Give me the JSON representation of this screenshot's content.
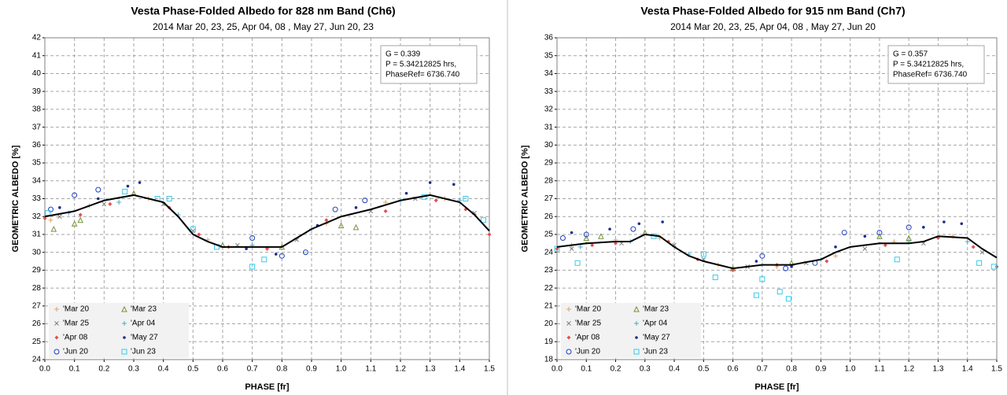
{
  "chart_data": [
    {
      "type": "scatter",
      "title": "Vesta Phase-Folded Albedo for 828 nm Band (Ch6)",
      "subtitle": "2014  Mar 20,  23, 25, Apr 04,  08 , May 27, Jun 20,  23",
      "x_label": "PHASE [fr]",
      "y_label": "GEOMETRIC ALBEDO [%]",
      "annotation": [
        "G = 0.339",
        "P = 5.34212825 hrs,",
        "PhaseRef= 6736.740"
      ],
      "xlim": [
        0,
        1.5
      ],
      "ylim": [
        24,
        42
      ],
      "xticks": [
        {
          "value": 0,
          "label": "0.0"
        },
        0.1,
        0.2,
        0.3,
        0.4,
        0.5,
        0.6,
        0.7,
        0.8,
        0.9,
        {
          "value": 1,
          "label": "1.0"
        },
        1.1,
        1.2,
        1.3,
        1.4,
        1.5
      ],
      "yticks": [
        24,
        25,
        26,
        27,
        28,
        29,
        30,
        31,
        32,
        33,
        34,
        35,
        36,
        37,
        38,
        39,
        40,
        41,
        42
      ],
      "grid": true,
      "legend": "lower left",
      "series": [
        {
          "name": "'Mar 20",
          "color": "#d9a66c",
          "marker": "plus",
          "x": [
            0.02,
            0.15,
            0.35,
            0.55,
            0.75,
            0.95,
            1.15,
            1.35
          ],
          "values": [
            31.8,
            32.6,
            33.0,
            30.7,
            30.2,
            31.6,
            32.8,
            33.0
          ]
        },
        {
          "name": "'Mar 23",
          "color": "#77933c",
          "marker": "triangle",
          "x": [
            0.03,
            0.1,
            0.12,
            0.3,
            0.6,
            0.8,
            1.0,
            1.05
          ],
          "values": [
            31.3,
            31.6,
            31.8,
            33.3,
            30.4,
            30.3,
            31.5,
            31.4
          ]
        },
        {
          "name": "'Mar 25",
          "color": "#7f7f7f",
          "marker": "cross",
          "x": [
            0.05,
            0.2,
            0.4,
            0.5,
            0.65,
            0.85,
            1.1,
            1.25,
            1.45
          ],
          "values": [
            32.0,
            32.7,
            32.7,
            31.2,
            30.4,
            30.7,
            32.3,
            33.0,
            32.2
          ]
        },
        {
          "name": "'Apr 04",
          "color": "#4bacc6",
          "marker": "plus",
          "x": [
            0.08,
            0.25,
            0.45,
            0.7,
            0.9,
            1.2,
            1.4
          ],
          "values": [
            32.2,
            32.8,
            32.1,
            30.4,
            31.3,
            32.9,
            32.9
          ]
        },
        {
          "name": "'Apr 08",
          "color": "#e05050",
          "marker": "diamond",
          "x": [
            0.0,
            0.12,
            0.22,
            0.42,
            0.52,
            0.62,
            0.75,
            0.95,
            1.15,
            1.32,
            1.42,
            1.5
          ],
          "values": [
            31.9,
            32.1,
            32.7,
            32.5,
            31.0,
            30.3,
            30.2,
            31.8,
            32.3,
            32.9,
            32.4,
            31.0
          ]
        },
        {
          "name": "'May 27",
          "color": "#1f2d8f",
          "marker": "dot",
          "x": [
            0.05,
            0.18,
            0.28,
            0.32,
            0.68,
            0.78,
            0.92,
            1.05,
            1.22,
            1.3,
            1.38
          ],
          "values": [
            32.5,
            33.0,
            33.7,
            33.9,
            30.2,
            29.9,
            31.5,
            32.5,
            33.3,
            33.9,
            33.8
          ]
        },
        {
          "name": "'Jun 20",
          "color": "#2040c0",
          "marker": "circle",
          "x": [
            0.02,
            0.1,
            0.18,
            0.7,
            0.8,
            0.88,
            0.98,
            1.08
          ],
          "values": [
            32.4,
            33.2,
            33.5,
            30.8,
            29.8,
            30.0,
            32.4,
            32.9
          ]
        },
        {
          "name": "'Jun 23",
          "color": "#33ccee",
          "marker": "square",
          "x": [
            0.01,
            0.27,
            0.38,
            0.42,
            0.5,
            0.58,
            0.7,
            0.74,
            1.28,
            1.42,
            1.48
          ],
          "values": [
            32.2,
            33.4,
            33.0,
            33.0,
            31.3,
            30.3,
            29.2,
            29.6,
            33.1,
            33.0,
            31.8
          ]
        }
      ],
      "fit": {
        "color": "#000000",
        "x": [
          0,
          0.1,
          0.2,
          0.3,
          0.4,
          0.45,
          0.5,
          0.55,
          0.6,
          0.7,
          0.8,
          0.85,
          0.9,
          1.0,
          1.1,
          1.2,
          1.3,
          1.4,
          1.45,
          1.5
        ],
        "values": [
          32.0,
          32.3,
          32.9,
          33.2,
          32.8,
          32.0,
          31.0,
          30.6,
          30.3,
          30.3,
          30.3,
          30.8,
          31.3,
          32.0,
          32.4,
          32.9,
          33.2,
          32.8,
          32.1,
          31.2
        ]
      }
    },
    {
      "type": "scatter",
      "title": "Vesta Phase-Folded Albedo for 915 nm Band (Ch7)",
      "subtitle": "2014  Mar 20,  23, 25, Apr 04,  08 , May 27, Jun 20",
      "x_label": "PHASE [fr]",
      "y_label": "GEOMETRIC ALBEDO [%]",
      "annotation": [
        "G = 0.357",
        "P = 5.34212825 hrs,",
        "PhaseRef= 6736.740"
      ],
      "xlim": [
        0,
        1.5
      ],
      "ylim": [
        18,
        36
      ],
      "xticks": [
        {
          "value": 0,
          "label": "0.0"
        },
        0.1,
        0.2,
        0.3,
        0.4,
        0.5,
        0.6,
        0.7,
        0.8,
        0.9,
        {
          "value": 1,
          "label": "1.0"
        },
        1.1,
        1.2,
        1.3,
        1.4,
        1.5
      ],
      "yticks": [
        18,
        19,
        20,
        21,
        22,
        23,
        24,
        25,
        26,
        27,
        28,
        29,
        30,
        31,
        32,
        33,
        34,
        35,
        36
      ],
      "grid": true,
      "legend": "lower left",
      "series": [
        {
          "name": "'Mar 20",
          "color": "#d9a66c",
          "marker": "plus",
          "x": [
            0.05,
            0.2,
            0.35,
            0.55,
            0.75,
            0.95,
            1.15,
            1.35
          ],
          "values": [
            24.4,
            24.7,
            24.8,
            23.3,
            23.2,
            23.8,
            24.6,
            24.9
          ]
        },
        {
          "name": "'Mar 23",
          "color": "#77933c",
          "marker": "triangle",
          "x": [
            0.1,
            0.15,
            0.3,
            0.6,
            0.8,
            1.1,
            1.2
          ],
          "values": [
            24.8,
            24.9,
            25.1,
            23.1,
            23.4,
            24.9,
            24.8
          ]
        },
        {
          "name": "'Mar 25",
          "color": "#7f7f7f",
          "marker": "cross",
          "x": [
            0.05,
            0.22,
            0.4,
            0.5,
            0.65,
            0.85,
            1.05,
            1.25,
            1.45
          ],
          "values": [
            24.2,
            24.5,
            24.4,
            23.6,
            23.2,
            23.4,
            24.2,
            24.5,
            24.0
          ]
        },
        {
          "name": "'Apr 04",
          "color": "#4bacc6",
          "marker": "plus",
          "x": [
            0.08,
            0.25,
            0.45,
            0.7,
            0.9,
            1.2,
            1.4
          ],
          "values": [
            24.3,
            24.6,
            23.9,
            23.3,
            23.6,
            24.6,
            24.6
          ]
        },
        {
          "name": "'Apr 08",
          "color": "#e05050",
          "marker": "diamond",
          "x": [
            0.0,
            0.12,
            0.2,
            0.38,
            0.48,
            0.6,
            0.75,
            0.92,
            1.12,
            1.3,
            1.42,
            1.5
          ],
          "values": [
            24.2,
            24.4,
            24.5,
            24.6,
            23.6,
            23.0,
            23.3,
            23.5,
            24.4,
            24.8,
            24.3,
            23.2
          ]
        },
        {
          "name": "'May 27",
          "color": "#1f2d8f",
          "marker": "dot",
          "x": [
            0.05,
            0.18,
            0.28,
            0.36,
            0.68,
            0.8,
            0.95,
            1.05,
            1.25,
            1.32,
            1.38
          ],
          "values": [
            25.1,
            25.3,
            25.6,
            25.7,
            23.5,
            23.2,
            24.3,
            24.9,
            25.4,
            25.7,
            25.6
          ]
        },
        {
          "name": "'Jun 20",
          "color": "#2040c0",
          "marker": "circle",
          "x": [
            0.02,
            0.1,
            0.26,
            0.7,
            0.78,
            0.88,
            0.98,
            1.1,
            1.2
          ],
          "values": [
            24.8,
            25.0,
            25.3,
            23.8,
            23.1,
            23.4,
            25.1,
            25.1,
            25.4
          ]
        },
        {
          "name": "'Jun 23",
          "color": "#33ccee",
          "marker": "square",
          "x": [
            0.0,
            0.07,
            0.33,
            0.5,
            0.54,
            0.68,
            0.7,
            0.76,
            0.79,
            1.16,
            1.44,
            1.49
          ],
          "values": [
            24.2,
            23.4,
            24.9,
            23.9,
            22.6,
            21.6,
            22.5,
            21.8,
            21.4,
            23.6,
            23.4,
            23.2
          ]
        }
      ],
      "fit": {
        "color": "#000000",
        "x": [
          0,
          0.1,
          0.2,
          0.25,
          0.3,
          0.35,
          0.4,
          0.45,
          0.5,
          0.6,
          0.7,
          0.8,
          0.9,
          0.95,
          1.0,
          1.1,
          1.2,
          1.25,
          1.3,
          1.4,
          1.45,
          1.5
        ],
        "values": [
          24.3,
          24.5,
          24.6,
          24.6,
          25.0,
          24.9,
          24.3,
          23.8,
          23.5,
          23.1,
          23.3,
          23.3,
          23.6,
          24.0,
          24.3,
          24.5,
          24.5,
          24.6,
          24.9,
          24.8,
          24.2,
          23.7
        ]
      }
    }
  ]
}
